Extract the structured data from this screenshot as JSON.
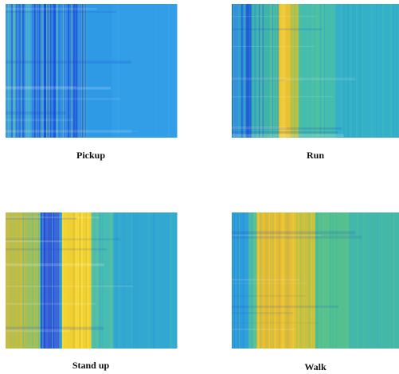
{
  "panels": [
    {
      "caption": "Pickup"
    },
    {
      "caption": "Run"
    },
    {
      "caption": "Stand up"
    },
    {
      "caption": "Walk"
    }
  ]
}
